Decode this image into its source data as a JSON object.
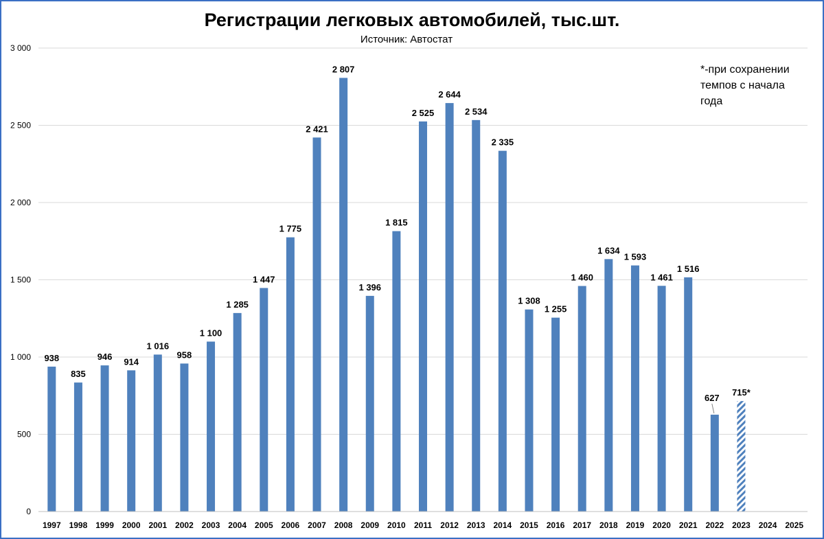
{
  "chart_data": {
    "type": "bar",
    "title": "Регистрации легковых автомобилей, тыс.шт.",
    "subtitle": "Источник: Автостат",
    "note": "*-при сохранении темпов с начала года",
    "xlabel": "",
    "ylabel": "",
    "ylim": [
      0,
      3000
    ],
    "yticks": [
      0,
      500,
      1000,
      1500,
      2000,
      2500,
      3000
    ],
    "ytick_labels": [
      "0",
      "500",
      "1 000",
      "1 500",
      "2 000",
      "2 500",
      "3 000"
    ],
    "grid": true,
    "categories": [
      "1997",
      "1998",
      "1999",
      "2000",
      "2001",
      "2002",
      "2003",
      "2004",
      "2005",
      "2006",
      "2007",
      "2008",
      "2009",
      "2010",
      "2011",
      "2012",
      "2013",
      "2014",
      "2015",
      "2016",
      "2017",
      "2018",
      "2019",
      "2020",
      "2021",
      "2022",
      "2023",
      "2024",
      "2025"
    ],
    "values": [
      938,
      835,
      946,
      914,
      1016,
      958,
      1100,
      1285,
      1447,
      1775,
      2421,
      2807,
      1396,
      1815,
      2525,
      2644,
      2534,
      2335,
      1308,
      1255,
      1460,
      1634,
      1593,
      1461,
      1516,
      627,
      715,
      null,
      null
    ],
    "data_labels": [
      "938",
      "835",
      "946",
      "914",
      "1 016",
      "958",
      "1 100",
      "1 285",
      "1 447",
      "1 775",
      "2 421",
      "2 807",
      "1 396",
      "1 815",
      "2 525",
      "2 644",
      "2 534",
      "2 335",
      "1 308",
      "1 255",
      "1 460",
      "1 634",
      "1 593",
      "1 461",
      "1 516",
      "627",
      "715*",
      "",
      ""
    ],
    "forecast_index": 26,
    "colors": {
      "bar": "#4f81bd",
      "grid": "#d9d9d9",
      "frame": "#3a6fc4",
      "forecast_stripe": "#4f81bd"
    }
  }
}
